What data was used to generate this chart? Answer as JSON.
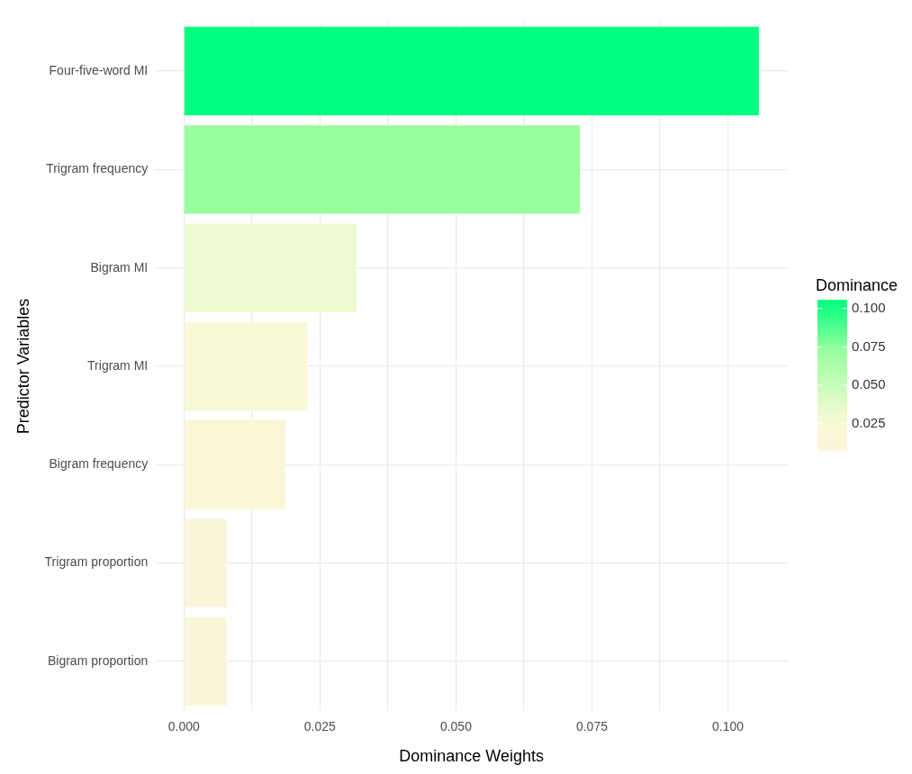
{
  "chart_data": {
    "type": "bar",
    "orientation": "horizontal",
    "xlabel": "Dominance Weights",
    "ylabel": "Predictor Variables",
    "clabel": "Dominance",
    "categories": [
      "Four-five-word MI",
      "Trigram frequency",
      "Bigram MI",
      "Trigram MI",
      "Bigram frequency",
      "Trigram proportion",
      "Bigram proportion"
    ],
    "values": [
      0.1057,
      0.0728,
      0.0317,
      0.0227,
      0.0187,
      0.0078,
      0.0078
    ],
    "colors": [
      "#00ff80",
      "#99ff9f",
      "#eefad0",
      "#f9f8d6",
      "#faf7d6",
      "#f9f5d8",
      "#f9f5d8"
    ],
    "xlim": [
      -0.0053,
      0.111
    ],
    "xticks": [
      {
        "value": 0,
        "label": "0.000"
      },
      {
        "value": 0.0125,
        "label": null
      },
      {
        "value": 0.025,
        "label": "0.025"
      },
      {
        "value": 0.0375,
        "label": null
      },
      {
        "value": 0.05,
        "label": "0.050"
      },
      {
        "value": 0.0625,
        "label": null
      },
      {
        "value": 0.075,
        "label": "0.075"
      },
      {
        "value": 0.0875,
        "label": null
      },
      {
        "value": 0.1,
        "label": "0.100"
      }
    ],
    "clim": [
      0.0078,
      0.1057
    ],
    "cticks": [
      {
        "value": 0.025,
        "label": "0.025"
      },
      {
        "value": 0.05,
        "label": "0.050"
      },
      {
        "value": 0.075,
        "label": "0.075"
      },
      {
        "value": 0.1,
        "label": "0.100"
      }
    ],
    "grid": true,
    "legend": false
  }
}
